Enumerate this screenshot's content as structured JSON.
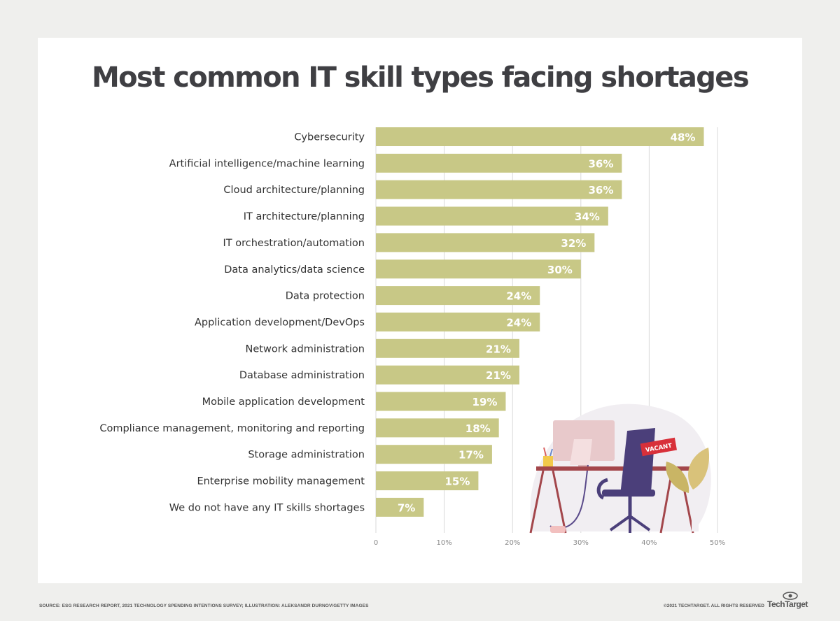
{
  "title": "Most common IT skill types facing shortages",
  "chart_data": {
    "type": "bar",
    "orientation": "horizontal",
    "title": "Most common IT skill types facing shortages",
    "categories": [
      "Cybersecurity",
      "Artificial intelligence/machine learning",
      "Cloud architecture/planning",
      "IT architecture/planning",
      "IT orchestration/automation",
      "Data analytics/data science",
      "Data protection",
      "Application development/DevOps",
      "Network administration",
      "Database administration",
      "Mobile application development",
      "Compliance management, monitoring and reporting",
      "Storage administration",
      "Enterprise mobility management",
      "We do not have any IT skills shortages"
    ],
    "values": [
      48,
      36,
      36,
      34,
      32,
      30,
      24,
      24,
      21,
      21,
      19,
      18,
      17,
      15,
      7
    ],
    "data_labels": [
      "48%",
      "36%",
      "36%",
      "34%",
      "32%",
      "30%",
      "24%",
      "24%",
      "21%",
      "21%",
      "19%",
      "18%",
      "17%",
      "15%",
      "7%"
    ],
    "xlim": [
      0,
      50
    ],
    "x_ticks": [
      "0",
      "10%",
      "20%",
      "30%",
      "40%",
      "50%"
    ],
    "xlabel": "",
    "ylabel": "",
    "grid": true,
    "bar_color": "#c8c886"
  },
  "illustration": {
    "sign_text": "VACANT"
  },
  "footer": {
    "source": "SOURCE: ESG RESEARCH REPORT, 2021 TECHNOLOGY SPENDING INTENTIONS SURVEY; ILLUSTRATION: ALEKSANDR DURNOV/GETTY IMAGES",
    "copyright": "©2021 TECHTARGET. ALL RIGHTS RESERVED",
    "brand": "TechTarget"
  }
}
